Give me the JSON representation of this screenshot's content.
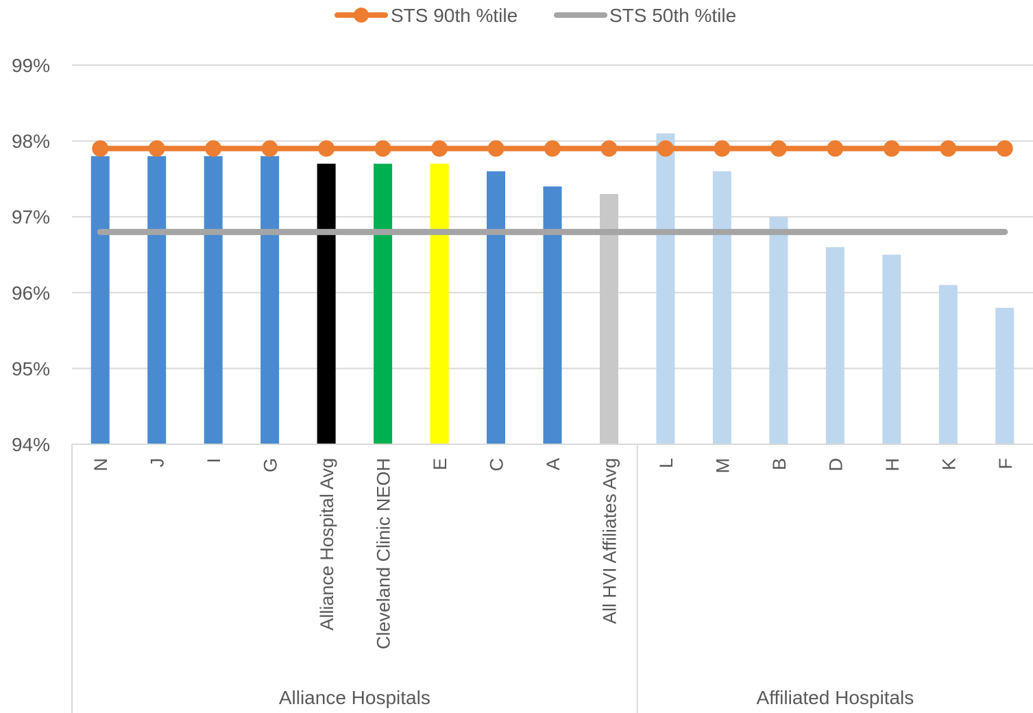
{
  "chart_data": {
    "type": "bar",
    "categories": [
      "N",
      "J",
      "I",
      "G",
      "Alliance Hospital Avg",
      "Cleveland Clinic NEOH",
      "E",
      "C",
      "A",
      "All HVI Affiliates Avg",
      "L",
      "M",
      "B",
      "D",
      "H",
      "K",
      "F"
    ],
    "values": [
      97.8,
      97.8,
      97.8,
      97.8,
      97.7,
      97.7,
      97.7,
      97.6,
      97.4,
      97.3,
      98.1,
      97.6,
      97.0,
      96.6,
      96.5,
      96.1,
      95.8
    ],
    "bar_colors": [
      "#4a8ad0",
      "#4a8ad0",
      "#4a8ad0",
      "#4a8ad0",
      "#000000",
      "#00b050",
      "#ffff00",
      "#4a8ad0",
      "#4a8ad0",
      "#c8c8c8",
      "#bdd7ee",
      "#bdd7ee",
      "#bdd7ee",
      "#bdd7ee",
      "#bdd7ee",
      "#bdd7ee",
      "#bdd7ee"
    ],
    "groups": [
      {
        "label": "Alliance Hospitals",
        "categories": 10
      },
      {
        "label": "Affiliated Hospitals",
        "categories": 7
      }
    ],
    "series": [
      {
        "name": "STS 90th %tile",
        "type": "line",
        "values": [
          97.9,
          97.9,
          97.9,
          97.9,
          97.9,
          97.9,
          97.9,
          97.9,
          97.9,
          97.9,
          97.9,
          97.9,
          97.9,
          97.9,
          97.9,
          97.9,
          97.9
        ],
        "color": "#ed7d31",
        "markers": true
      },
      {
        "name": "STS 50th %tile",
        "type": "line",
        "values": [
          96.8,
          96.8,
          96.8,
          96.8,
          96.8,
          96.8,
          96.8,
          96.8,
          96.8,
          96.8,
          96.8,
          96.8,
          96.8,
          96.8,
          96.8,
          96.8,
          96.8
        ],
        "color": "#a5a5a5",
        "markers": false
      }
    ],
    "ylim": [
      94,
      99
    ],
    "yticks": [
      94,
      95,
      96,
      97,
      98,
      99
    ],
    "ytick_labels": [
      "94%",
      "95%",
      "96%",
      "97%",
      "98%",
      "99%"
    ],
    "grid": true,
    "legend_position": "top-center",
    "title": "",
    "xlabel": "",
    "ylabel": ""
  }
}
